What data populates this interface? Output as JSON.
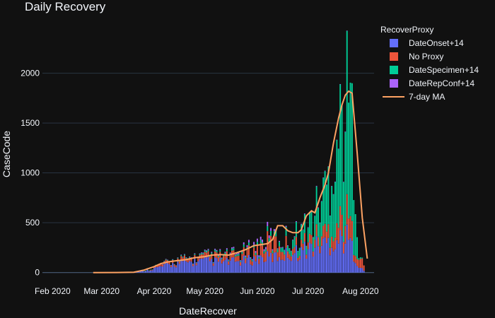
{
  "chart_data": {
    "type": "bar",
    "barmode": "stack",
    "title": "Daily Recovery",
    "xlabel": "DateRecover",
    "ylabel": "CaseCode",
    "x_range": [
      "2020-01-26",
      "2020-08-09"
    ],
    "ylim": [
      -80,
      2380
    ],
    "x_ticks": [
      {
        "date": "2020-02-01",
        "label": "Feb 2020"
      },
      {
        "date": "2020-03-01",
        "label": "Mar 2020"
      },
      {
        "date": "2020-04-01",
        "label": "Apr 2020"
      },
      {
        "date": "2020-05-01",
        "label": "May 2020"
      },
      {
        "date": "2020-06-01",
        "label": "Jun 2020"
      },
      {
        "date": "2020-07-01",
        "label": "Jul 2020"
      },
      {
        "date": "2020-08-01",
        "label": "Aug 2020"
      }
    ],
    "y_ticks": [
      {
        "value": 0,
        "label": "0"
      },
      {
        "value": 500,
        "label": "500"
      },
      {
        "value": 1000,
        "label": "1000"
      },
      {
        "value": 1500,
        "label": "1500"
      },
      {
        "value": 2000,
        "label": "2000"
      }
    ],
    "grid": true,
    "legend_title": "RecoverProxy",
    "legend_position": "top-right",
    "series": [
      {
        "name": "DateOnset+14",
        "color": "#636efa",
        "kind": "bar",
        "points": [
          [
            "2020-03-01",
            1
          ],
          [
            "2020-03-12",
            2
          ],
          [
            "2020-03-22",
            8
          ],
          [
            "2020-03-28",
            25
          ],
          [
            "2020-04-02",
            45
          ],
          [
            "2020-04-08",
            70
          ],
          [
            "2020-04-14",
            90
          ],
          [
            "2020-04-20",
            100
          ],
          [
            "2020-04-26",
            110
          ],
          [
            "2020-05-02",
            115
          ],
          [
            "2020-05-08",
            110
          ],
          [
            "2020-05-14",
            105
          ],
          [
            "2020-05-20",
            110
          ],
          [
            "2020-05-26",
            120
          ],
          [
            "2020-06-01",
            140
          ],
          [
            "2020-06-07",
            150
          ],
          [
            "2020-06-13",
            160
          ],
          [
            "2020-06-19",
            185
          ],
          [
            "2020-06-25",
            205
          ],
          [
            "2020-07-01",
            240
          ],
          [
            "2020-07-07",
            270
          ],
          [
            "2020-07-13",
            300
          ],
          [
            "2020-07-19",
            330
          ],
          [
            "2020-07-25",
            340
          ],
          [
            "2020-07-28",
            200
          ],
          [
            "2020-07-31",
            60
          ],
          [
            "2020-08-03",
            20
          ]
        ]
      },
      {
        "name": "No Proxy",
        "color": "#ef553b",
        "kind": "bar",
        "points": [
          [
            "2020-03-22",
            0
          ],
          [
            "2020-04-02",
            15
          ],
          [
            "2020-04-14",
            25
          ],
          [
            "2020-04-26",
            30
          ],
          [
            "2020-05-08",
            45
          ],
          [
            "2020-05-20",
            50
          ],
          [
            "2020-06-01",
            80
          ],
          [
            "2020-06-07",
            140
          ],
          [
            "2020-06-13",
            120
          ],
          [
            "2020-06-19",
            80
          ],
          [
            "2020-06-25",
            55
          ],
          [
            "2020-07-01",
            70
          ],
          [
            "2020-07-07",
            90
          ],
          [
            "2020-07-13",
            120
          ],
          [
            "2020-07-19",
            180
          ],
          [
            "2020-07-25",
            220
          ],
          [
            "2020-07-28",
            120
          ],
          [
            "2020-07-31",
            100
          ],
          [
            "2020-08-03",
            60
          ]
        ]
      },
      {
        "name": "DateSpecimen+14",
        "color": "#00cc96",
        "kind": "bar",
        "points": [
          [
            "2020-03-22",
            0
          ],
          [
            "2020-04-02",
            3
          ],
          [
            "2020-04-14",
            6
          ],
          [
            "2020-04-26",
            8
          ],
          [
            "2020-05-08",
            12
          ],
          [
            "2020-05-20",
            15
          ],
          [
            "2020-06-01",
            25
          ],
          [
            "2020-06-07",
            35
          ],
          [
            "2020-06-13",
            45
          ],
          [
            "2020-06-19",
            70
          ],
          [
            "2020-06-25",
            120
          ],
          [
            "2020-07-01",
            150
          ],
          [
            "2020-07-07",
            300
          ],
          [
            "2020-07-13",
            500
          ],
          [
            "2020-07-19",
            900
          ],
          [
            "2020-07-25",
            1200
          ],
          [
            "2020-07-28",
            1000
          ],
          [
            "2020-07-31",
            20
          ],
          [
            "2020-08-03",
            0
          ]
        ]
      },
      {
        "name": "DateRepConf+14",
        "color": "#ab63fa",
        "kind": "bar",
        "points": [
          [
            "2020-04-02",
            0
          ],
          [
            "2020-04-26",
            5
          ],
          [
            "2020-05-20",
            10
          ],
          [
            "2020-06-01",
            25
          ],
          [
            "2020-06-07",
            30
          ],
          [
            "2020-06-13",
            10
          ],
          [
            "2020-06-25",
            5
          ],
          [
            "2020-07-13",
            3
          ],
          [
            "2020-07-25",
            0
          ]
        ]
      },
      {
        "name": "7-day MA",
        "color": "#fda263",
        "kind": "line",
        "points": [
          [
            "2020-02-25",
            0
          ],
          [
            "2020-03-10",
            1
          ],
          [
            "2020-03-20",
            4
          ],
          [
            "2020-03-26",
            25
          ],
          [
            "2020-04-01",
            60
          ],
          [
            "2020-04-05",
            90
          ],
          [
            "2020-04-10",
            110
          ],
          [
            "2020-04-15",
            120
          ],
          [
            "2020-04-20",
            130
          ],
          [
            "2020-04-25",
            150
          ],
          [
            "2020-05-01",
            160
          ],
          [
            "2020-05-05",
            175
          ],
          [
            "2020-05-10",
            180
          ],
          [
            "2020-05-15",
            175
          ],
          [
            "2020-05-20",
            200
          ],
          [
            "2020-05-25",
            230
          ],
          [
            "2020-05-30",
            270
          ],
          [
            "2020-06-03",
            280
          ],
          [
            "2020-06-07",
            290
          ],
          [
            "2020-06-10",
            330
          ],
          [
            "2020-06-13",
            470
          ],
          [
            "2020-06-16",
            470
          ],
          [
            "2020-06-19",
            420
          ],
          [
            "2020-06-22",
            400
          ],
          [
            "2020-06-25",
            400
          ],
          [
            "2020-06-27",
            430
          ],
          [
            "2020-06-30",
            570
          ],
          [
            "2020-07-03",
            620
          ],
          [
            "2020-07-05",
            600
          ],
          [
            "2020-07-08",
            750
          ],
          [
            "2020-07-11",
            880
          ],
          [
            "2020-07-13",
            1000
          ],
          [
            "2020-07-16",
            1300
          ],
          [
            "2020-07-19",
            1550
          ],
          [
            "2020-07-21",
            1680
          ],
          [
            "2020-07-23",
            1780
          ],
          [
            "2020-07-25",
            1820
          ],
          [
            "2020-07-27",
            1800
          ],
          [
            "2020-07-30",
            1200
          ],
          [
            "2020-08-02",
            550
          ],
          [
            "2020-08-05",
            140
          ]
        ]
      }
    ]
  }
}
